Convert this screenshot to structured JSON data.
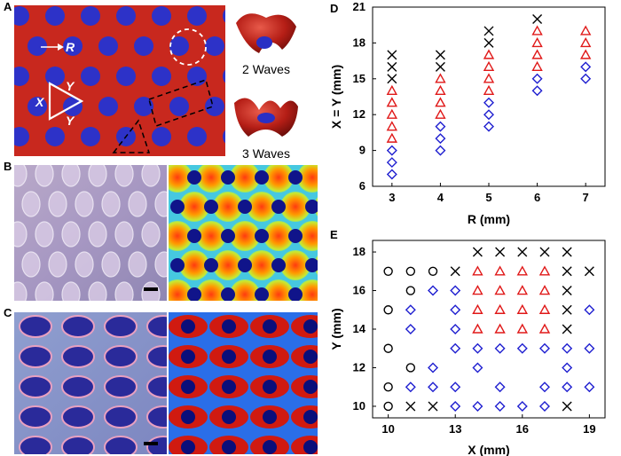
{
  "panels": {
    "a": "A",
    "b": "B",
    "c": "C",
    "d": "D",
    "e": "E"
  },
  "panel_a": {
    "labels": {
      "r": "R",
      "x": "X",
      "y1": "Y",
      "y2": "Y"
    },
    "wave2_label": "2 Waves",
    "wave3_label": "3 Waves",
    "colors": {
      "background": "#c8281e",
      "holes": "#2d32c8"
    }
  },
  "chart_data": [
    {
      "id": "D",
      "type": "scatter",
      "xlabel": "R (mm)",
      "ylabel": "X = Y (mm)",
      "xlim": [
        2.6,
        7.4
      ],
      "ylim": [
        6,
        21
      ],
      "xticks": [
        3,
        4,
        5,
        6,
        7
      ],
      "yticks": [
        6,
        9,
        12,
        15,
        18,
        21
      ],
      "series": [
        {
          "marker": "diamond",
          "color": "#1f1fd0",
          "points": [
            [
              3,
              7
            ],
            [
              3,
              8
            ],
            [
              3,
              9
            ],
            [
              4,
              9
            ],
            [
              4,
              10
            ],
            [
              4,
              11
            ],
            [
              5,
              11
            ],
            [
              5,
              12
            ],
            [
              5,
              13
            ],
            [
              6,
              14
            ],
            [
              6,
              15
            ],
            [
              7,
              15
            ],
            [
              7,
              16
            ]
          ]
        },
        {
          "marker": "triangle",
          "color": "#e01818",
          "points": [
            [
              3,
              10
            ],
            [
              3,
              11
            ],
            [
              3,
              12
            ],
            [
              3,
              13
            ],
            [
              3,
              14
            ],
            [
              4,
              12
            ],
            [
              4,
              13
            ],
            [
              4,
              14
            ],
            [
              4,
              15
            ],
            [
              5,
              14
            ],
            [
              5,
              15
            ],
            [
              5,
              16
            ],
            [
              5,
              17
            ],
            [
              6,
              16
            ],
            [
              6,
              17
            ],
            [
              6,
              18
            ],
            [
              6,
              19
            ],
            [
              7,
              17
            ],
            [
              7,
              18
            ],
            [
              7,
              19
            ]
          ]
        },
        {
          "marker": "cross",
          "color": "#000000",
          "points": [
            [
              3,
              15
            ],
            [
              3,
              16
            ],
            [
              3,
              17
            ],
            [
              4,
              16
            ],
            [
              4,
              17
            ],
            [
              5,
              18
            ],
            [
              5,
              19
            ],
            [
              6,
              20
            ]
          ]
        }
      ]
    },
    {
      "id": "E",
      "type": "scatter",
      "xlabel": "X (mm)",
      "ylabel": "Y (mm)",
      "xlim": [
        9.3,
        19.7
      ],
      "ylim": [
        9.4,
        18.6
      ],
      "xticks": [
        10,
        13,
        16,
        19
      ],
      "yticks": [
        10,
        12,
        14,
        16,
        18
      ],
      "series": [
        {
          "marker": "circle",
          "color": "#000000",
          "points": [
            [
              10,
              10
            ],
            [
              10,
              11
            ],
            [
              10,
              13
            ],
            [
              10,
              15
            ],
            [
              10,
              17
            ],
            [
              11,
              12
            ],
            [
              11,
              16
            ],
            [
              11,
              17
            ],
            [
              12,
              17
            ]
          ]
        },
        {
          "marker": "cross",
          "color": "#000000",
          "points": [
            [
              11,
              10
            ],
            [
              12,
              10
            ],
            [
              13,
              17
            ],
            [
              14,
              18
            ],
            [
              15,
              18
            ],
            [
              16,
              18
            ],
            [
              17,
              18
            ],
            [
              18,
              18
            ],
            [
              18,
              17
            ],
            [
              18,
              16
            ],
            [
              18,
              15
            ],
            [
              18,
              14
            ],
            [
              18,
              10
            ],
            [
              19,
              17
            ]
          ]
        },
        {
          "marker": "diamond",
          "color": "#1f1fd0",
          "points": [
            [
              11,
              11
            ],
            [
              11,
              14
            ],
            [
              11,
              15
            ],
            [
              12,
              11
            ],
            [
              12,
              12
            ],
            [
              12,
              16
            ],
            [
              13,
              10
            ],
            [
              13,
              11
            ],
            [
              13,
              13
            ],
            [
              13,
              14
            ],
            [
              13,
              15
            ],
            [
              13,
              16
            ],
            [
              14,
              10
            ],
            [
              14,
              12
            ],
            [
              14,
              13
            ],
            [
              15,
              10
            ],
            [
              15,
              11
            ],
            [
              15,
              13
            ],
            [
              16,
              10
            ],
            [
              16,
              13
            ],
            [
              17,
              10
            ],
            [
              17,
              11
            ],
            [
              17,
              13
            ],
            [
              18,
              11
            ],
            [
              18,
              12
            ],
            [
              18,
              13
            ],
            [
              19,
              11
            ],
            [
              19,
              13
            ],
            [
              19,
              15
            ]
          ]
        },
        {
          "marker": "triangle",
          "color": "#e01818",
          "points": [
            [
              14,
              14
            ],
            [
              14,
              15
            ],
            [
              14,
              16
            ],
            [
              14,
              17
            ],
            [
              15,
              14
            ],
            [
              15,
              15
            ],
            [
              15,
              16
            ],
            [
              15,
              17
            ],
            [
              16,
              14
            ],
            [
              16,
              15
            ],
            [
              16,
              16
            ],
            [
              16,
              17
            ],
            [
              17,
              14
            ],
            [
              17,
              15
            ],
            [
              17,
              16
            ],
            [
              17,
              17
            ]
          ]
        }
      ]
    }
  ]
}
